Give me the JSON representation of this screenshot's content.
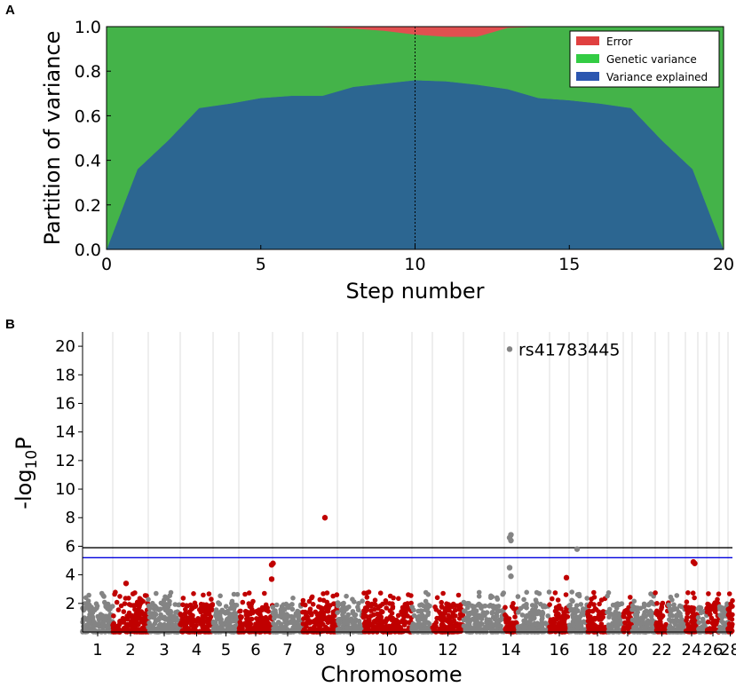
{
  "panel_a_label": "A",
  "panel_b_label": "B",
  "chart_data": [
    {
      "type": "area",
      "stacked": true,
      "xlabel": "Step number",
      "ylabel": "Partition of variance",
      "xlim": [
        0,
        20
      ],
      "ylim": [
        0,
        1.0
      ],
      "x_ticks": [
        "0",
        "5",
        "10",
        "15",
        "20"
      ],
      "y_ticks": [
        "0.0",
        "0.2",
        "0.4",
        "0.6",
        "0.8",
        "1.0"
      ],
      "x": [
        0,
        1,
        2,
        3,
        4,
        5,
        6,
        7,
        8,
        9,
        10,
        11,
        12,
        13,
        14,
        15,
        16,
        17,
        18,
        19,
        20
      ],
      "series": [
        {
          "name": "Variance explained",
          "color": "#2c6691",
          "values": [
            0.0,
            0.36,
            0.49,
            0.635,
            0.655,
            0.68,
            0.69,
            0.69,
            0.73,
            0.745,
            0.76,
            0.755,
            0.74,
            0.72,
            0.68,
            0.67,
            0.655,
            0.635,
            0.49,
            0.36,
            0.0
          ]
        },
        {
          "name": "Genetic variance",
          "color": "#44b349",
          "values": [
            1.0,
            0.64,
            0.51,
            0.365,
            0.345,
            0.32,
            0.31,
            0.308,
            0.262,
            0.237,
            0.205,
            0.2,
            0.215,
            0.275,
            0.32,
            0.33,
            0.345,
            0.365,
            0.51,
            0.64,
            1.0
          ]
        },
        {
          "name": "Error",
          "color": "#e05050",
          "values": [
            0.0,
            0.0,
            0.0,
            0.0,
            0.0,
            0.0,
            0.0,
            0.002,
            0.008,
            0.018,
            0.035,
            0.045,
            0.045,
            0.005,
            0.0,
            0.0,
            0.0,
            0.0,
            0.0,
            0.0,
            0.0
          ]
        }
      ],
      "legend_position": "top-right",
      "vline_x": 10,
      "legend": [
        "Error",
        "Genetic variance",
        "Variance explained"
      ]
    },
    {
      "type": "scatter",
      "subtype": "manhattan",
      "xlabel": "Chromosome",
      "ylabel_main": "-log",
      "ylabel_sub": "10",
      "ylabel_tail": "P",
      "ylim": [
        0,
        21
      ],
      "y_ticks": [
        "2",
        "4",
        "6",
        "8",
        "10",
        "12",
        "14",
        "16",
        "18",
        "20"
      ],
      "chromosomes": [
        "1",
        "2",
        "3",
        "4",
        "5",
        "6",
        "7",
        "8",
        "9",
        "10",
        "11",
        "12",
        "13",
        "14",
        "15",
        "16",
        "17",
        "18",
        "19",
        "20",
        "21",
        "22",
        "23",
        "24",
        "25",
        "26",
        "27",
        "28",
        "29"
      ],
      "chromosome_tick_labels": [
        "1",
        "2",
        "3",
        "4",
        "5",
        "6",
        "7",
        "8",
        "9",
        "10",
        "12",
        "14",
        "16",
        "18",
        "20",
        "22",
        "24",
        "26",
        "28"
      ],
      "colors": {
        "odd": "#848484",
        "even": "#c00000"
      },
      "threshold_lines": [
        {
          "y": 5.9,
          "color": "#000000"
        },
        {
          "y": 5.2,
          "color": "#0000dd"
        }
      ],
      "top_hits": [
        {
          "chromosome": "8",
          "values": [
            8.0
          ]
        },
        {
          "chromosome": "15",
          "values": [
            19.8,
            6.8,
            6.6,
            6.4,
            4.5,
            3.9
          ]
        },
        {
          "chromosome": "19",
          "values": [
            5.8
          ]
        },
        {
          "chromosome": "6",
          "values": [
            4.7,
            4.8,
            3.7
          ]
        },
        {
          "chromosome": "26",
          "values": [
            4.9,
            4.8
          ]
        },
        {
          "chromosome": "2",
          "values": [
            3.4
          ]
        },
        {
          "chromosome": "18",
          "values": [
            3.8
          ]
        }
      ],
      "annotation": {
        "text": "rs41783445",
        "chromosome": "15",
        "y": 19.8
      }
    }
  ]
}
